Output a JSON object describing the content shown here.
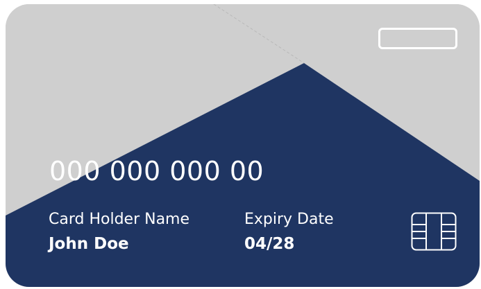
{
  "card": {
    "number": "000 000 000 00",
    "holder_label": "Card Holder Name",
    "holder_value": "John Doe",
    "expiry_label": "Expiry Date",
    "expiry_value": "04/28"
  },
  "colors": {
    "card_light": "#cfcfcf",
    "card_dark": "#1f3562",
    "text": "#ffffff"
  },
  "icons": {
    "chip": "chip-icon",
    "top_right": "card-pill-icon"
  }
}
